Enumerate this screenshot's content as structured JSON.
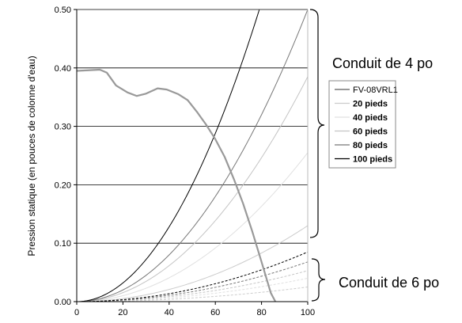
{
  "chart_data": {
    "type": "line",
    "title": "",
    "xlabel": "",
    "ylabel": "Pression statique (en pouces de colonne d'eau)",
    "xlim": [
      0,
      100
    ],
    "ylim": [
      0,
      0.5
    ],
    "x_ticks": [
      "0",
      "20",
      "40",
      "60",
      "80",
      "100"
    ],
    "y_ticks": [
      "0.00",
      "0.10",
      "0.20",
      "0.30",
      "0.40",
      "0.50"
    ],
    "grid": "horizontal",
    "legend_position": "right",
    "fan_curve": {
      "name": "FV-08VRL1",
      "color": "#999999",
      "x": [
        0,
        5,
        10,
        13,
        17,
        22,
        26,
        30,
        35,
        39,
        44,
        48,
        52,
        56,
        60,
        64,
        68,
        72,
        76,
        80,
        84,
        86
      ],
      "y": [
        0.395,
        0.396,
        0.397,
        0.392,
        0.37,
        0.358,
        0.352,
        0.356,
        0.365,
        0.363,
        0.355,
        0.345,
        0.325,
        0.303,
        0.278,
        0.248,
        0.21,
        0.168,
        0.12,
        0.068,
        0.015,
        0.0
      ]
    },
    "groups": [
      {
        "label": "Conduit de 4 po",
        "series": [
          {
            "name": "20 pieds",
            "color": "#cccccc",
            "k": 1.3e-05,
            "x_end": 100
          },
          {
            "name": "40 pieds",
            "color": "#e0e0e0",
            "k": 2.55e-05,
            "x_end": 100
          },
          {
            "name": "60 pieds",
            "color": "#c4c4c4",
            "k": 3.85e-05,
            "x_end": 100
          },
          {
            "name": "80 pieds",
            "color": "#777777",
            "k": 5e-05,
            "x_end": 100
          },
          {
            "name": "100 pieds",
            "color": "#000000",
            "k": 8e-05,
            "x_end": 79
          }
        ]
      },
      {
        "label": "Conduit de 6 po",
        "series": [
          {
            "name": "20 pieds",
            "color": "#cccccc",
            "k": 2.5e-06,
            "x_end": 100
          },
          {
            "name": "40 pieds",
            "color": "#e0e0e0",
            "k": 4e-06,
            "x_end": 100
          },
          {
            "name": "60 pieds",
            "color": "#c4c4c4",
            "k": 5.3e-06,
            "x_end": 100
          },
          {
            "name": "80 pieds",
            "color": "#777777",
            "k": 6.8e-06,
            "x_end": 100
          },
          {
            "name": "100 pieds",
            "color": "#000000",
            "k": 8.5e-06,
            "x_end": 100
          }
        ]
      }
    ],
    "legend": [
      {
        "name": "FV-08VRL1",
        "color": "#999999",
        "bold": false
      },
      {
        "name": "20 pieds",
        "color": "#cccccc",
        "bold": true
      },
      {
        "name": "40 pieds",
        "color": "#e0e0e0",
        "bold": true
      },
      {
        "name": "60 pieds",
        "color": "#c4c4c4",
        "bold": true
      },
      {
        "name": "80 pieds",
        "color": "#777777",
        "bold": true
      },
      {
        "name": "100 pieds",
        "color": "#000000",
        "bold": true
      }
    ]
  }
}
